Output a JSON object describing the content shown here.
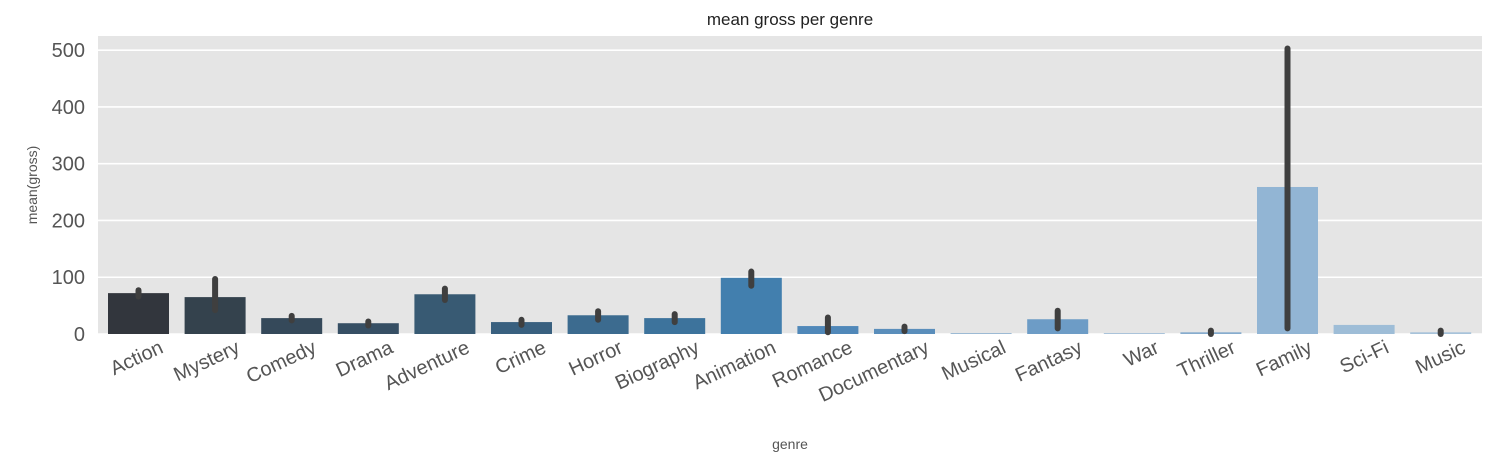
{
  "chart_data": {
    "type": "bar",
    "title": "mean gross per genre",
    "xlabel": "genre",
    "ylabel": "mean(gross)",
    "ylim": [
      0,
      525
    ],
    "yticks": [
      0,
      100,
      200,
      300,
      400,
      500
    ],
    "grid": true,
    "categories": [
      "Action",
      "Mystery",
      "Comedy",
      "Drama",
      "Adventure",
      "Crime",
      "Horror",
      "Biography",
      "Animation",
      "Romance",
      "Documentary",
      "Musical",
      "Fantasy",
      "War",
      "Thriller",
      "Family",
      "Sci-Fi",
      "Music"
    ],
    "values": [
      72,
      65,
      28,
      19,
      70,
      21,
      33,
      28,
      99,
      14,
      9,
      0.5,
      26,
      0.3,
      3,
      259,
      16,
      3
    ],
    "error_low": [
      66,
      42,
      24,
      15,
      60,
      16,
      25,
      21,
      85,
      3,
      5,
      0.5,
      10,
      0.3,
      0,
      10,
      16,
      0
    ],
    "error_high": [
      77,
      97,
      32,
      22,
      80,
      25,
      40,
      35,
      110,
      29,
      13,
      0.5,
      41,
      0.3,
      6,
      503,
      16,
      6
    ],
    "colors": [
      "#32363d",
      "#34424d",
      "#35495a",
      "#364f64",
      "#385a73",
      "#39607f",
      "#3c6b8f",
      "#3d739c",
      "#427fae",
      "#5088b9",
      "#5a8ebb",
      "#6496c1",
      "#6d9cc6",
      "#7aa4ca",
      "#86acce",
      "#92b5d4",
      "#9ebdd7",
      "#a7c3da"
    ]
  }
}
